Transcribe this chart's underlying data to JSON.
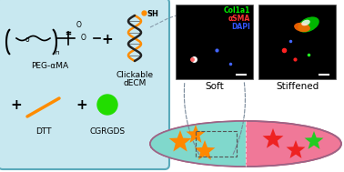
{
  "left_box_bg": "#c8e8f0",
  "left_box_edge": "#5aaabb",
  "peg_label": "PEG-αMA",
  "dtt_label": "DTT",
  "cgrgds_label": "CGRGDS",
  "clickable_label1": "Clickable",
  "clickable_label2": "dECM",
  "sh_label": "SH",
  "col1a1_label": "Col1a1",
  "asma_label": "αSMA",
  "dapi_label": "DAPI",
  "soft_label": "Soft",
  "stiffened_label": "Stiffened",
  "col1a1_color": "#00ee00",
  "asma_color": "#ff3333",
  "dapi_color": "#3355ff",
  "sh_color": "#ff8c00",
  "orange_line_color": "#ff8c00",
  "green_circle_color": "#22dd00",
  "ellipse_cyan": "#80d8cc",
  "ellipse_pink": "#f07898",
  "star_orange": "#ff8800",
  "star_red": "#ee2222",
  "star_green": "#22cc22",
  "helix_orange": "#ff8c00",
  "helix_black": "#222222",
  "dash_color": "#778899"
}
